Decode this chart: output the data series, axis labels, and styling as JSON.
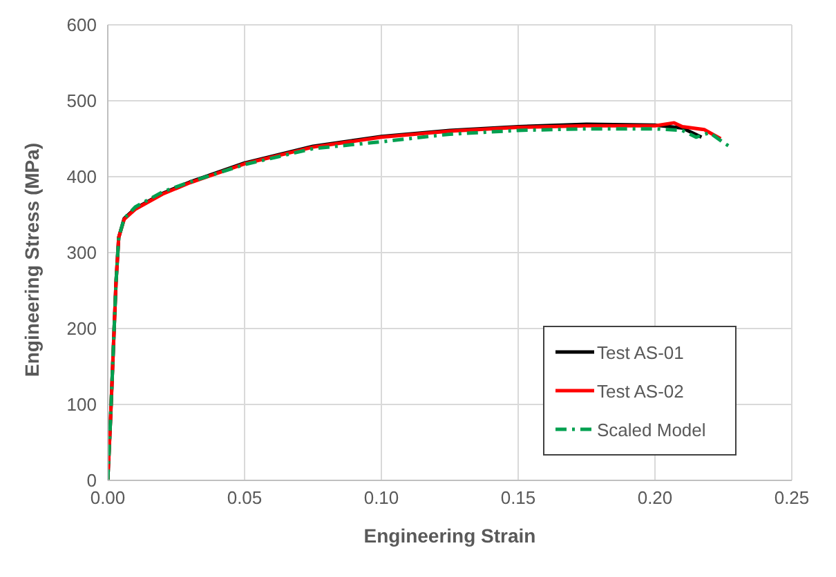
{
  "chart_data": {
    "type": "line",
    "xlabel": "Engineering Strain",
    "ylabel": "Engineering Stress (MPa)",
    "xlim": [
      0,
      0.25
    ],
    "xticks": [
      {
        "value": 0,
        "label": "0.00"
      },
      {
        "value": 0.05,
        "label": "0.05"
      },
      {
        "value": 0.1,
        "label": "0.10"
      },
      {
        "value": 0.15,
        "label": "0.15"
      },
      {
        "value": 0.2,
        "label": "0.20"
      },
      {
        "value": 0.25,
        "label": "0.25"
      }
    ],
    "ylim": [
      0,
      600
    ],
    "yticks": [
      0,
      100,
      200,
      300,
      400,
      500,
      600
    ],
    "grid": true,
    "legend": "bottom right",
    "marker": "none",
    "series": [
      {
        "name": "Test AS-01",
        "color": "#000000",
        "line_style": "solid",
        "x": [
          0,
          0.001,
          0.002,
          0.003,
          0.004,
          0.006,
          0.01,
          0.02,
          0.03,
          0.05,
          0.075,
          0.1,
          0.125,
          0.15,
          0.175,
          0.2,
          0.21,
          0.217
        ],
        "values": [
          0,
          80,
          170,
          260,
          320,
          345,
          358,
          378,
          393,
          418,
          440,
          453,
          461,
          466,
          469,
          468,
          464,
          452
        ]
      },
      {
        "name": "Test AS-02",
        "color": "#ff0000",
        "line_style": "solid",
        "x": [
          0,
          0.001,
          0.002,
          0.003,
          0.004,
          0.006,
          0.01,
          0.02,
          0.03,
          0.05,
          0.075,
          0.1,
          0.125,
          0.15,
          0.175,
          0.2,
          0.207,
          0.21,
          0.218,
          0.224
        ],
        "values": [
          0,
          80,
          170,
          260,
          320,
          344,
          357,
          377,
          392,
          417,
          439,
          452,
          460,
          465,
          467,
          467,
          471,
          466,
          462,
          450
        ]
      },
      {
        "name": "Scaled Model",
        "color": "#00a050",
        "line_style": "dashed",
        "x": [
          0,
          0.001,
          0.002,
          0.003,
          0.004,
          0.006,
          0.01,
          0.02,
          0.03,
          0.05,
          0.075,
          0.1,
          0.125,
          0.15,
          0.175,
          0.2,
          0.21,
          0.215,
          0.22,
          0.225,
          0.228
        ],
        "values": [
          0,
          80,
          170,
          260,
          320,
          345,
          360,
          380,
          393,
          416,
          437,
          446,
          456,
          461,
          463,
          463,
          461,
          452,
          458,
          445,
          438
        ]
      }
    ]
  }
}
